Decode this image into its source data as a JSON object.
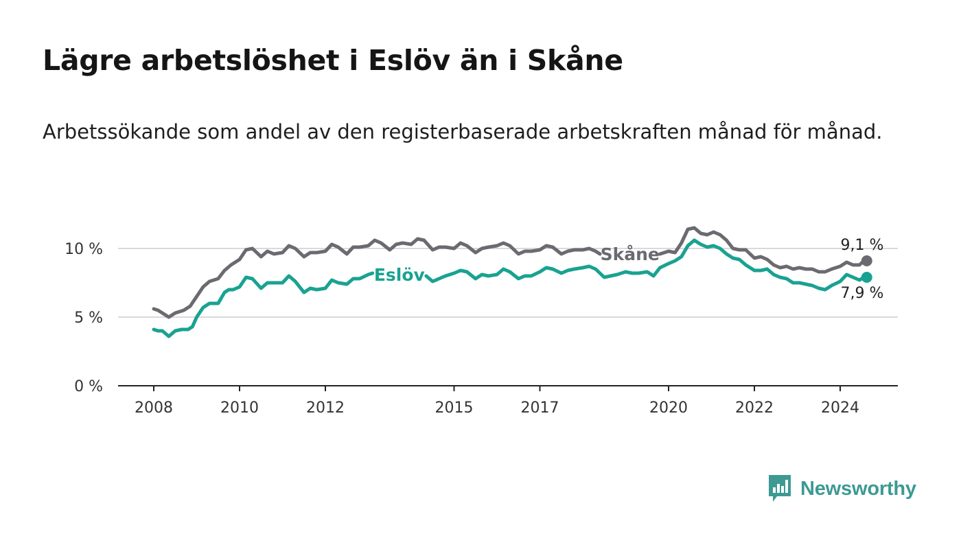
{
  "title": "Lägre arbetslöshet i Eslöv än i Skåne",
  "subtitle": "Arbetssökande som andel av den registerbaserade arbetskraften månad för månad.",
  "brand": "Newsworthy",
  "colors": {
    "eslov": "#19a291",
    "skane": "#6b6a70",
    "grid": "#d9d9d9",
    "axis": "#222222",
    "brand": "#3d9a93"
  },
  "chart_data": {
    "type": "line",
    "title": "Lägre arbetslöshet i Eslöv än i Skåne",
    "xlabel": "",
    "ylabel": "",
    "xlim": [
      2007.75,
      2024.75
    ],
    "ylim": [
      0,
      12
    ],
    "x_ticks": [
      {
        "value": 2008,
        "label": "2008"
      },
      {
        "value": 2010,
        "label": "2010"
      },
      {
        "value": 2012,
        "label": "2012"
      },
      {
        "value": 2015,
        "label": "2015"
      },
      {
        "value": 2017,
        "label": "2017"
      },
      {
        "value": 2020,
        "label": "2020"
      },
      {
        "value": 2022,
        "label": "2022"
      },
      {
        "value": 2024,
        "label": "2024"
      }
    ],
    "y_ticks": [
      {
        "value": 0,
        "label": "0 %"
      },
      {
        "value": 5,
        "label": "5 %"
      },
      {
        "value": 10,
        "label": "10 %"
      }
    ],
    "grid": true,
    "series": [
      {
        "name": "Skåne",
        "label": "Skåne",
        "end_label": "9,1 %",
        "end_value": 9.1,
        "points": [
          [
            2008.0,
            5.6
          ],
          [
            2008.1,
            5.5
          ],
          [
            2008.2,
            5.3
          ],
          [
            2008.35,
            5.0
          ],
          [
            2008.5,
            5.3
          ],
          [
            2008.7,
            5.5
          ],
          [
            2008.85,
            5.8
          ],
          [
            2009.0,
            6.5
          ],
          [
            2009.15,
            7.2
          ],
          [
            2009.3,
            7.6
          ],
          [
            2009.5,
            7.8
          ],
          [
            2009.65,
            8.4
          ],
          [
            2009.8,
            8.8
          ],
          [
            2010.0,
            9.2
          ],
          [
            2010.15,
            9.9
          ],
          [
            2010.3,
            10.0
          ],
          [
            2010.5,
            9.4
          ],
          [
            2010.65,
            9.8
          ],
          [
            2010.8,
            9.6
          ],
          [
            2011.0,
            9.7
          ],
          [
            2011.15,
            10.2
          ],
          [
            2011.3,
            10.0
          ],
          [
            2011.5,
            9.4
          ],
          [
            2011.65,
            9.7
          ],
          [
            2011.8,
            9.7
          ],
          [
            2012.0,
            9.8
          ],
          [
            2012.15,
            10.3
          ],
          [
            2012.3,
            10.1
          ],
          [
            2012.5,
            9.6
          ],
          [
            2012.65,
            10.1
          ],
          [
            2012.8,
            10.1
          ],
          [
            2013.0,
            10.2
          ],
          [
            2013.15,
            10.6
          ],
          [
            2013.3,
            10.4
          ],
          [
            2013.5,
            9.9
          ],
          [
            2013.65,
            10.3
          ],
          [
            2013.8,
            10.4
          ],
          [
            2014.0,
            10.3
          ],
          [
            2014.15,
            10.7
          ],
          [
            2014.3,
            10.6
          ],
          [
            2014.5,
            9.9
          ],
          [
            2014.65,
            10.1
          ],
          [
            2014.8,
            10.1
          ],
          [
            2015.0,
            10.0
          ],
          [
            2015.15,
            10.4
          ],
          [
            2015.3,
            10.2
          ],
          [
            2015.5,
            9.7
          ],
          [
            2015.65,
            10.0
          ],
          [
            2015.8,
            10.1
          ],
          [
            2016.0,
            10.2
          ],
          [
            2016.15,
            10.4
          ],
          [
            2016.3,
            10.2
          ],
          [
            2016.5,
            9.6
          ],
          [
            2016.65,
            9.8
          ],
          [
            2016.8,
            9.8
          ],
          [
            2017.0,
            9.9
          ],
          [
            2017.15,
            10.2
          ],
          [
            2017.3,
            10.1
          ],
          [
            2017.5,
            9.6
          ],
          [
            2017.65,
            9.8
          ],
          [
            2017.8,
            9.9
          ],
          [
            2018.0,
            9.9
          ],
          [
            2018.15,
            10.0
          ],
          [
            2018.3,
            9.8
          ],
          [
            2018.4,
            9.6
          ]
        ],
        "points_after_label": [
          [
            2019.8,
            9.6
          ],
          [
            2020.0,
            9.8
          ],
          [
            2020.15,
            9.7
          ],
          [
            2020.3,
            10.4
          ],
          [
            2020.45,
            11.4
          ],
          [
            2020.6,
            11.5
          ],
          [
            2020.75,
            11.1
          ],
          [
            2020.9,
            11.0
          ],
          [
            2021.05,
            11.2
          ],
          [
            2021.2,
            11.0
          ],
          [
            2021.35,
            10.6
          ],
          [
            2021.5,
            10.0
          ],
          [
            2021.65,
            9.9
          ],
          [
            2021.8,
            9.9
          ],
          [
            2022.0,
            9.3
          ],
          [
            2022.15,
            9.4
          ],
          [
            2022.3,
            9.2
          ],
          [
            2022.45,
            8.8
          ],
          [
            2022.6,
            8.6
          ],
          [
            2022.75,
            8.7
          ],
          [
            2022.9,
            8.5
          ],
          [
            2023.05,
            8.6
          ],
          [
            2023.2,
            8.5
          ],
          [
            2023.35,
            8.5
          ],
          [
            2023.5,
            8.3
          ],
          [
            2023.65,
            8.3
          ],
          [
            2023.8,
            8.5
          ],
          [
            2024.0,
            8.7
          ],
          [
            2024.15,
            9.0
          ],
          [
            2024.3,
            8.8
          ],
          [
            2024.45,
            8.8
          ],
          [
            2024.55,
            9.1
          ],
          [
            2024.62,
            9.1
          ]
        ]
      },
      {
        "name": "Eslöv",
        "label": "Eslöv",
        "end_label": "7,9 %",
        "end_value": 7.9,
        "points": [
          [
            2008.0,
            4.1
          ],
          [
            2008.1,
            4.0
          ],
          [
            2008.2,
            4.0
          ],
          [
            2008.35,
            3.6
          ],
          [
            2008.5,
            4.0
          ],
          [
            2008.65,
            4.1
          ],
          [
            2008.8,
            4.1
          ],
          [
            2008.9,
            4.3
          ],
          [
            2009.0,
            5.0
          ],
          [
            2009.15,
            5.7
          ],
          [
            2009.3,
            6.0
          ],
          [
            2009.5,
            6.0
          ],
          [
            2009.65,
            6.8
          ],
          [
            2009.75,
            7.0
          ],
          [
            2009.85,
            7.0
          ],
          [
            2010.0,
            7.2
          ],
          [
            2010.15,
            7.9
          ],
          [
            2010.3,
            7.8
          ],
          [
            2010.5,
            7.1
          ],
          [
            2010.65,
            7.5
          ],
          [
            2010.8,
            7.5
          ],
          [
            2011.0,
            7.5
          ],
          [
            2011.15,
            8.0
          ],
          [
            2011.3,
            7.6
          ],
          [
            2011.5,
            6.8
          ],
          [
            2011.65,
            7.1
          ],
          [
            2011.8,
            7.0
          ],
          [
            2012.0,
            7.1
          ],
          [
            2012.15,
            7.7
          ],
          [
            2012.3,
            7.5
          ],
          [
            2012.5,
            7.4
          ],
          [
            2012.65,
            7.8
          ],
          [
            2012.8,
            7.8
          ],
          [
            2013.0,
            8.1
          ],
          [
            2013.1,
            8.2
          ]
        ],
        "points_after_label": [
          [
            2014.35,
            8.0
          ],
          [
            2014.5,
            7.6
          ],
          [
            2014.65,
            7.8
          ],
          [
            2014.8,
            8.0
          ],
          [
            2015.0,
            8.2
          ],
          [
            2015.15,
            8.4
          ],
          [
            2015.3,
            8.3
          ],
          [
            2015.5,
            7.8
          ],
          [
            2015.65,
            8.1
          ],
          [
            2015.8,
            8.0
          ],
          [
            2016.0,
            8.1
          ],
          [
            2016.15,
            8.5
          ],
          [
            2016.3,
            8.3
          ],
          [
            2016.5,
            7.8
          ],
          [
            2016.65,
            8.0
          ],
          [
            2016.8,
            8.0
          ],
          [
            2017.0,
            8.3
          ],
          [
            2017.15,
            8.6
          ],
          [
            2017.3,
            8.5
          ],
          [
            2017.5,
            8.2
          ],
          [
            2017.65,
            8.4
          ],
          [
            2017.8,
            8.5
          ],
          [
            2018.0,
            8.6
          ],
          [
            2018.15,
            8.7
          ],
          [
            2018.3,
            8.5
          ],
          [
            2018.5,
            7.9
          ],
          [
            2018.65,
            8.0
          ],
          [
            2018.8,
            8.1
          ],
          [
            2019.0,
            8.3
          ],
          [
            2019.15,
            8.2
          ],
          [
            2019.3,
            8.2
          ],
          [
            2019.5,
            8.3
          ],
          [
            2019.65,
            8.0
          ],
          [
            2019.8,
            8.6
          ],
          [
            2020.0,
            8.9
          ],
          [
            2020.15,
            9.1
          ],
          [
            2020.3,
            9.4
          ],
          [
            2020.45,
            10.2
          ],
          [
            2020.6,
            10.6
          ],
          [
            2020.75,
            10.3
          ],
          [
            2020.9,
            10.1
          ],
          [
            2021.05,
            10.2
          ],
          [
            2021.2,
            10.0
          ],
          [
            2021.35,
            9.6
          ],
          [
            2021.5,
            9.3
          ],
          [
            2021.65,
            9.2
          ],
          [
            2021.8,
            8.8
          ],
          [
            2022.0,
            8.4
          ],
          [
            2022.15,
            8.4
          ],
          [
            2022.3,
            8.5
          ],
          [
            2022.45,
            8.1
          ],
          [
            2022.6,
            7.9
          ],
          [
            2022.75,
            7.8
          ],
          [
            2022.9,
            7.5
          ],
          [
            2023.05,
            7.5
          ],
          [
            2023.2,
            7.4
          ],
          [
            2023.35,
            7.3
          ],
          [
            2023.5,
            7.1
          ],
          [
            2023.65,
            7.0
          ],
          [
            2023.8,
            7.3
          ],
          [
            2024.0,
            7.6
          ],
          [
            2024.15,
            8.1
          ],
          [
            2024.3,
            7.9
          ],
          [
            2024.45,
            7.7
          ],
          [
            2024.55,
            7.9
          ],
          [
            2024.62,
            7.9
          ]
        ]
      }
    ]
  }
}
